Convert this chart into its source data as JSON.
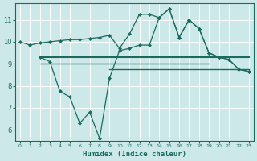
{
  "line1_x": [
    0,
    1,
    2,
    3,
    4,
    5,
    6,
    7,
    8,
    9,
    10,
    11,
    12,
    13,
    14,
    15,
    16,
    17,
    18,
    19,
    20,
    21,
    22,
    23
  ],
  "line1_y": [
    10.0,
    9.85,
    9.95,
    10.0,
    10.05,
    10.1,
    10.1,
    10.15,
    10.2,
    10.3,
    9.7,
    10.35,
    11.25,
    11.25,
    11.1,
    11.5,
    10.2,
    11.0,
    10.6,
    9.5,
    9.3,
    9.2,
    8.75,
    8.65
  ],
  "line2_x": [
    2,
    3,
    4,
    5,
    6,
    7,
    8,
    9,
    10,
    11,
    12,
    13,
    14,
    15,
    16,
    17,
    18,
    19,
    20,
    21,
    22,
    23
  ],
  "line2_y": [
    9.3,
    9.1,
    7.75,
    7.5,
    6.3,
    6.8,
    5.6,
    8.35,
    9.6,
    9.7,
    9.85,
    9.85,
    11.1,
    11.5,
    10.2,
    11.0,
    10.6,
    9.5,
    9.3,
    9.2,
    8.75,
    8.65
  ],
  "hline1_x_start": 2,
  "hline1_x_end": 23,
  "hline1_y": 9.3,
  "hline2_x_start": 2,
  "hline2_x_end": 19,
  "hline2_y": 9.0,
  "hline3_x_start": 9,
  "hline3_x_end": 23,
  "hline3_y": 8.75,
  "color": "#1a6b5e",
  "bg_color": "#cce8e8",
  "grid_color": "#ffffff",
  "xlabel": "Humidex (Indice chaleur)",
  "ylim": [
    5.5,
    11.75
  ],
  "xlim_min": -0.5,
  "xlim_max": 23.5,
  "yticks": [
    6,
    7,
    8,
    9,
    10,
    11
  ],
  "xticks": [
    0,
    1,
    2,
    3,
    4,
    5,
    6,
    7,
    8,
    9,
    10,
    11,
    12,
    13,
    14,
    15,
    16,
    17,
    18,
    19,
    20,
    21,
    22,
    23
  ]
}
